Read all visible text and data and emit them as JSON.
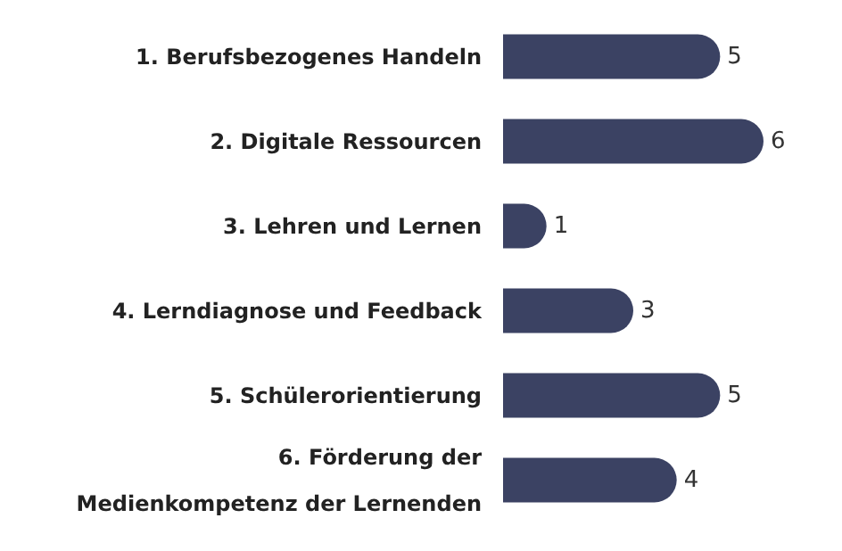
{
  "chart_data": {
    "type": "bar",
    "orientation": "horizontal",
    "categories": [
      "1. Berufsbezogenes Handeln",
      "2. Digitale Ressourcen",
      "3. Lehren und Lernen",
      "4. Lerndiagnose und Feedback",
      "5. Schülerorientierung",
      "6. Förderung der\nMedienkompetenz der Lernenden"
    ],
    "values": [
      5,
      6,
      1,
      3,
      5,
      4
    ],
    "color": "#3b4263",
    "data_labels": true
  }
}
